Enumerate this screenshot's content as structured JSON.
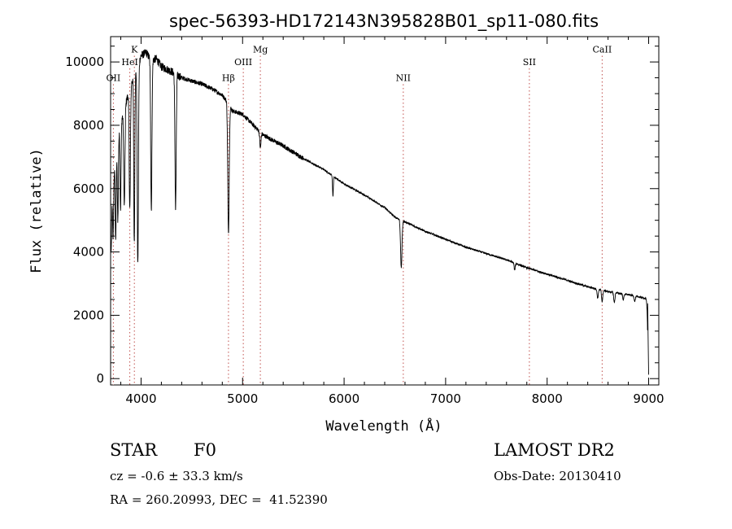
{
  "chart_data": {
    "type": "line",
    "title": "spec-56393-HD172143N395828B01_sp11-080.fits",
    "xlabel": "Wavelength (Å)",
    "ylabel": "Flux (relative)",
    "xlim": [
      3700,
      9100
    ],
    "ylim": [
      -200,
      10800
    ],
    "x_ticks": [
      4000,
      5000,
      6000,
      7000,
      8000,
      9000
    ],
    "x_tick_labels": [
      "4000",
      "5000",
      "6000",
      "7000",
      "8000",
      "9000"
    ],
    "y_ticks": [
      0,
      2000,
      4000,
      6000,
      8000,
      10000
    ],
    "y_tick_labels": [
      "0",
      "2000",
      "4000",
      "6000",
      "8000",
      "10000"
    ],
    "continuum": [
      [
        3700,
        5200
      ],
      [
        3730,
        6500
      ],
      [
        3760,
        7300
      ],
      [
        3800,
        8100
      ],
      [
        3850,
        8700
      ],
      [
        3900,
        9300
      ],
      [
        3950,
        9700
      ],
      [
        4000,
        10200
      ],
      [
        4050,
        10300
      ],
      [
        4100,
        10050
      ],
      [
        4150,
        10100
      ],
      [
        4200,
        9850
      ],
      [
        4300,
        9700
      ],
      [
        4400,
        9500
      ],
      [
        4500,
        9400
      ],
      [
        4600,
        9300
      ],
      [
        4700,
        9150
      ],
      [
        4800,
        8950
      ],
      [
        4860,
        8700
      ],
      [
        4900,
        8450
      ],
      [
        5000,
        8350
      ],
      [
        5200,
        7700
      ],
      [
        5400,
        7350
      ],
      [
        5600,
        6950
      ],
      [
        5800,
        6600
      ],
      [
        6000,
        6150
      ],
      [
        6200,
        5800
      ],
      [
        6400,
        5400
      ],
      [
        6500,
        5100
      ],
      [
        6600,
        4950
      ],
      [
        6800,
        4650
      ],
      [
        7000,
        4400
      ],
      [
        7200,
        4150
      ],
      [
        7400,
        3950
      ],
      [
        7600,
        3750
      ],
      [
        7800,
        3500
      ],
      [
        8000,
        3300
      ],
      [
        8200,
        3100
      ],
      [
        8400,
        2900
      ],
      [
        8600,
        2750
      ],
      [
        8800,
        2650
      ],
      [
        8950,
        2550
      ],
      [
        8985,
        2500
      ]
    ],
    "absorption_lines": [
      {
        "center": 3705,
        "depth": 1500,
        "width": 5
      },
      {
        "center": 3725,
        "depth": 1800,
        "width": 5
      },
      {
        "center": 3750,
        "depth": 2600,
        "width": 5
      },
      {
        "center": 3771,
        "depth": 2500,
        "width": 5
      },
      {
        "center": 3798,
        "depth": 2700,
        "width": 5
      },
      {
        "center": 3835,
        "depth": 3100,
        "width": 6
      },
      {
        "center": 3889,
        "depth": 3800,
        "width": 6
      },
      {
        "center": 3933,
        "depth": 5300,
        "width": 5
      },
      {
        "center": 3968,
        "depth": 6300,
        "width": 6
      },
      {
        "center": 4101,
        "depth": 4700,
        "width": 6
      },
      {
        "center": 4340,
        "depth": 4300,
        "width": 6
      },
      {
        "center": 4861,
        "depth": 4100,
        "width": 7
      },
      {
        "center": 5175,
        "depth": 500,
        "width": 6
      },
      {
        "center": 5890,
        "depth": 650,
        "width": 4
      },
      {
        "center": 6563,
        "depth": 1500,
        "width": 7
      },
      {
        "center": 7680,
        "depth": 220,
        "width": 5
      },
      {
        "center": 8498,
        "depth": 280,
        "width": 6
      },
      {
        "center": 8542,
        "depth": 360,
        "width": 6
      },
      {
        "center": 8662,
        "depth": 320,
        "width": 6
      },
      {
        "center": 8750,
        "depth": 180,
        "width": 6
      },
      {
        "center": 8863,
        "depth": 160,
        "width": 6
      },
      {
        "center": 9000,
        "depth": 2500,
        "width": 8
      }
    ],
    "line_markers": [
      {
        "label": "OII",
        "x": 3727,
        "label_y": 9400
      },
      {
        "label": "HeI",
        "x": 3889,
        "label_y": 9900
      },
      {
        "label": "K",
        "x": 3934,
        "label_y": 10300
      },
      {
        "label": "Hβ",
        "x": 4861,
        "label_y": 9400
      },
      {
        "label": "OIII",
        "x": 5007,
        "label_y": 9900
      },
      {
        "label": "Mg",
        "x": 5175,
        "label_y": 10300
      },
      {
        "label": "NII",
        "x": 6583,
        "label_y": 9400
      },
      {
        "label": "SII",
        "x": 7825,
        "label_y": 9900
      },
      {
        "label": "CaII",
        "x": 8542,
        "label_y": 10300
      }
    ]
  },
  "info": {
    "object_class": "STAR",
    "subclass": "F0",
    "survey": "LAMOST DR2",
    "redshift": "cz = -0.6 ± 33.3 km/s",
    "obs_date": "Obs-Date: 20130410",
    "coords": "RA = 260.20993, DEC =  41.52390"
  }
}
